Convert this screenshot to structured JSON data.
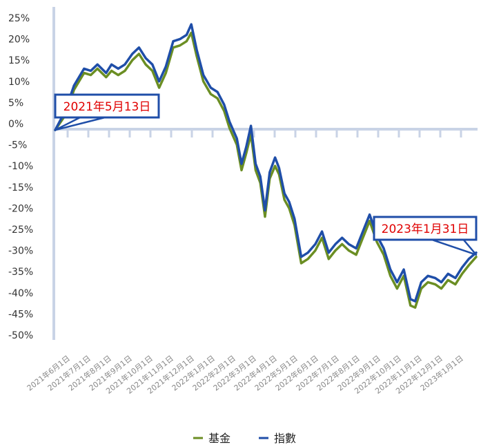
{
  "chart_data": {
    "type": "line",
    "title": "",
    "xlabel": "",
    "ylabel": "",
    "ylim": [
      -50,
      25
    ],
    "y_ticks": [
      "25%",
      "20%",
      "15%",
      "10%",
      "5%",
      "0%",
      "-5%",
      "-10%",
      "-15%",
      "-20%",
      "-25%",
      "-30%",
      "-35%",
      "-40%",
      "-45%",
      "-50%"
    ],
    "y_tick_values": [
      25,
      20,
      15,
      10,
      5,
      0,
      -5,
      -10,
      -15,
      -20,
      -25,
      -30,
      -35,
      -40,
      -45,
      -50
    ],
    "x_ticks": [
      "2021年6月1日",
      "2021年7月1日",
      "2021年8月1日",
      "2021年9月1日",
      "2021年10月1日",
      "2021年11月1日",
      "2021年12月1日",
      "2022年1月1日",
      "2022年2月1日",
      "2022年3月1日",
      "2022年4月1日",
      "2022年5月1日",
      "2022年6月1日",
      "2022年7月1日",
      "2022年8月1日",
      "2022年9月1日",
      "2022年10月1日",
      "2022年11月1日",
      "2022年12月1日",
      "2023年1月1日"
    ],
    "x_range": [
      "2021-05-13",
      "2023-01-31"
    ],
    "legend_position": "bottom-center",
    "annotations": [
      {
        "text": "2021年5月13日",
        "x": "2021-05-13",
        "y": -1.5
      },
      {
        "text": "2023年1月31日",
        "x": "2023-01-31",
        "y": -31
      }
    ],
    "series": [
      {
        "name": "基金",
        "color": "#6b8e23",
        "points": [
          [
            "2021-05-13",
            -1.5
          ],
          [
            "2021-05-28",
            2
          ],
          [
            "2021-06-10",
            8
          ],
          [
            "2021-06-25",
            12
          ],
          [
            "2021-07-05",
            11.5
          ],
          [
            "2021-07-15",
            13
          ],
          [
            "2021-07-28",
            11
          ],
          [
            "2021-08-05",
            12.5
          ],
          [
            "2021-08-15",
            11.5
          ],
          [
            "2021-08-25",
            12.5
          ],
          [
            "2021-09-05",
            15
          ],
          [
            "2021-09-15",
            16.5
          ],
          [
            "2021-09-25",
            14
          ],
          [
            "2021-10-05",
            12.5
          ],
          [
            "2021-10-15",
            8.5
          ],
          [
            "2021-10-25",
            12
          ],
          [
            "2021-11-05",
            18
          ],
          [
            "2021-11-15",
            18.5
          ],
          [
            "2021-11-25",
            19.5
          ],
          [
            "2021-12-02",
            21.5
          ],
          [
            "2021-12-10",
            16
          ],
          [
            "2021-12-20",
            10
          ],
          [
            "2021-12-31",
            7
          ],
          [
            "2022-01-10",
            6
          ],
          [
            "2022-01-20",
            3
          ],
          [
            "2022-01-28",
            -1
          ],
          [
            "2022-02-08",
            -5
          ],
          [
            "2022-02-15",
            -11
          ],
          [
            "2022-02-22",
            -7
          ],
          [
            "2022-03-01",
            -2.5
          ],
          [
            "2022-03-08",
            -11
          ],
          [
            "2022-03-15",
            -14
          ],
          [
            "2022-03-22",
            -22
          ],
          [
            "2022-03-29",
            -13
          ],
          [
            "2022-04-06",
            -10
          ],
          [
            "2022-04-12",
            -12
          ],
          [
            "2022-04-20",
            -18
          ],
          [
            "2022-04-27",
            -20
          ],
          [
            "2022-05-05",
            -24
          ],
          [
            "2022-05-15",
            -33
          ],
          [
            "2022-05-25",
            -32
          ],
          [
            "2022-06-05",
            -30
          ],
          [
            "2022-06-15",
            -27
          ],
          [
            "2022-06-25",
            -32
          ],
          [
            "2022-07-05",
            -30
          ],
          [
            "2022-07-15",
            -28.5
          ],
          [
            "2022-07-25",
            -30
          ],
          [
            "2022-08-05",
            -31
          ],
          [
            "2022-08-15",
            -27
          ],
          [
            "2022-08-25",
            -23
          ],
          [
            "2022-09-05",
            -28
          ],
          [
            "2022-09-15",
            -31
          ],
          [
            "2022-09-25",
            -36
          ],
          [
            "2022-10-05",
            -39
          ],
          [
            "2022-10-15",
            -36
          ],
          [
            "2022-10-25",
            -43
          ],
          [
            "2022-11-01",
            -43.5
          ],
          [
            "2022-11-10",
            -39
          ],
          [
            "2022-11-20",
            -37.5
          ],
          [
            "2022-12-01",
            -38
          ],
          [
            "2022-12-10",
            -39
          ],
          [
            "2022-12-20",
            -37
          ],
          [
            "2022-12-31",
            -38
          ],
          [
            "2023-01-10",
            -35.5
          ],
          [
            "2023-01-20",
            -33.5
          ],
          [
            "2023-01-31",
            -31.5
          ]
        ]
      },
      {
        "name": "指數",
        "color": "#1f4ea8",
        "points": [
          [
            "2021-05-13",
            -1.5
          ],
          [
            "2021-05-28",
            3
          ],
          [
            "2021-06-10",
            9
          ],
          [
            "2021-06-25",
            13
          ],
          [
            "2021-07-05",
            12.5
          ],
          [
            "2021-07-15",
            14
          ],
          [
            "2021-07-28",
            12
          ],
          [
            "2021-08-05",
            14
          ],
          [
            "2021-08-15",
            13
          ],
          [
            "2021-08-25",
            14
          ],
          [
            "2021-09-05",
            16.5
          ],
          [
            "2021-09-15",
            18
          ],
          [
            "2021-09-25",
            15.5
          ],
          [
            "2021-10-05",
            14
          ],
          [
            "2021-10-15",
            10
          ],
          [
            "2021-10-25",
            13.5
          ],
          [
            "2021-11-05",
            19.5
          ],
          [
            "2021-11-15",
            20
          ],
          [
            "2021-11-25",
            21
          ],
          [
            "2021-12-02",
            23.5
          ],
          [
            "2021-12-10",
            17.5
          ],
          [
            "2021-12-20",
            11.5
          ],
          [
            "2021-12-31",
            8.5
          ],
          [
            "2022-01-10",
            7.5
          ],
          [
            "2022-01-20",
            4.5
          ],
          [
            "2022-01-28",
            0.5
          ],
          [
            "2022-02-08",
            -3.5
          ],
          [
            "2022-02-15",
            -9.5
          ],
          [
            "2022-02-22",
            -5.5
          ],
          [
            "2022-03-01",
            -0.5
          ],
          [
            "2022-03-08",
            -9.5
          ],
          [
            "2022-03-15",
            -12.5
          ],
          [
            "2022-03-22",
            -20.5
          ],
          [
            "2022-03-29",
            -11.5
          ],
          [
            "2022-04-06",
            -8
          ],
          [
            "2022-04-12",
            -10.5
          ],
          [
            "2022-04-20",
            -16.5
          ],
          [
            "2022-04-27",
            -18.5
          ],
          [
            "2022-05-05",
            -22.5
          ],
          [
            "2022-05-15",
            -31.5
          ],
          [
            "2022-05-25",
            -30.5
          ],
          [
            "2022-06-05",
            -28.5
          ],
          [
            "2022-06-15",
            -25.5
          ],
          [
            "2022-06-25",
            -30.5
          ],
          [
            "2022-07-05",
            -28.5
          ],
          [
            "2022-07-15",
            -27
          ],
          [
            "2022-07-25",
            -28.5
          ],
          [
            "2022-08-05",
            -29.5
          ],
          [
            "2022-08-15",
            -25.5
          ],
          [
            "2022-08-25",
            -21.5
          ],
          [
            "2022-09-05",
            -26.5
          ],
          [
            "2022-09-15",
            -29.5
          ],
          [
            "2022-09-25",
            -34.5
          ],
          [
            "2022-10-05",
            -37.5
          ],
          [
            "2022-10-15",
            -34.5
          ],
          [
            "2022-10-25",
            -41.5
          ],
          [
            "2022-11-01",
            -42
          ],
          [
            "2022-11-10",
            -37.5
          ],
          [
            "2022-11-20",
            -36
          ],
          [
            "2022-12-01",
            -36.5
          ],
          [
            "2022-12-10",
            -37.5
          ],
          [
            "2022-12-20",
            -35.5
          ],
          [
            "2022-12-31",
            -36.5
          ],
          [
            "2023-01-10",
            -34
          ],
          [
            "2023-01-20",
            -32
          ],
          [
            "2023-01-31",
            -30.5
          ]
        ]
      }
    ]
  }
}
